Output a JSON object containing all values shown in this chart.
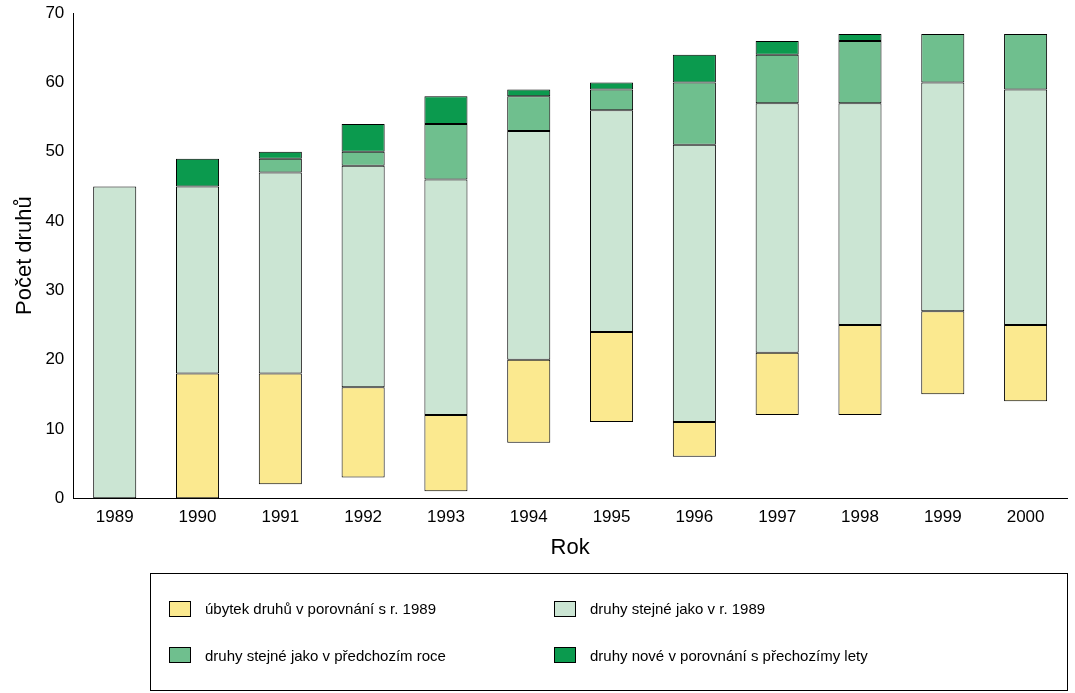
{
  "chart_data": {
    "type": "bar",
    "xlabel": "Rok",
    "ylabel": "Počet druhů",
    "categories": [
      "1989",
      "1990",
      "1991",
      "1992",
      "1993",
      "1994",
      "1995",
      "1996",
      "1997",
      "1998",
      "1999",
      "2000"
    ],
    "series": [
      {
        "name": "úbytek druhů v porovnání s r. 1989",
        "color": "#fbe98f",
        "base": [
          null,
          0,
          2,
          3,
          1,
          8,
          11,
          6,
          12,
          12,
          15,
          14
        ],
        "values": [
          null,
          18,
          16,
          13,
          11,
          12,
          13,
          5,
          9,
          13,
          12,
          11
        ]
      },
      {
        "name": "druhy stejné jako v r. 1989",
        "color": "#cbe5d3",
        "base": [
          0,
          18,
          18,
          16,
          12,
          20,
          24,
          11,
          21,
          25,
          27,
          25
        ],
        "values": [
          45,
          27,
          29,
          32,
          34,
          33,
          32,
          40,
          36,
          32,
          33,
          34
        ]
      },
      {
        "name": "druhy stejné jako v předchozím roce",
        "color": "#6fbf8e",
        "base": [
          null,
          null,
          47,
          48,
          46,
          53,
          56,
          51,
          57,
          57,
          60,
          59
        ],
        "values": [
          null,
          null,
          2,
          2,
          8,
          5,
          3,
          9,
          7,
          9,
          7,
          8
        ]
      },
      {
        "name": "druhy nové v porovnání s přechozímy lety",
        "color": "#0b9a4e",
        "base": [
          null,
          45,
          49,
          50,
          54,
          58,
          59,
          60,
          64,
          66,
          null,
          null
        ],
        "values": [
          null,
          4,
          1,
          4,
          4,
          1,
          1,
          4,
          2,
          1,
          null,
          null
        ]
      }
    ],
    "ylim": [
      0,
      70
    ],
    "yticks": [
      0,
      10,
      20,
      30,
      40,
      50,
      60,
      70
    ],
    "legend": "bottom"
  }
}
